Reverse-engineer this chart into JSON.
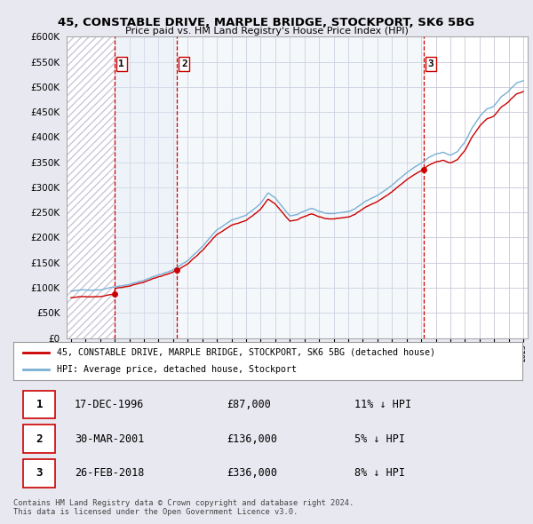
{
  "title1": "45, CONSTABLE DRIVE, MARPLE BRIDGE, STOCKPORT, SK6 5BG",
  "title2": "Price paid vs. HM Land Registry's House Price Index (HPI)",
  "ylim": [
    0,
    600000
  ],
  "yticks": [
    0,
    50000,
    100000,
    150000,
    200000,
    250000,
    300000,
    350000,
    400000,
    450000,
    500000,
    550000,
    600000
  ],
  "transactions": [
    {
      "date_num": 1996.96,
      "price": 87000,
      "label": "1"
    },
    {
      "date_num": 2001.25,
      "price": 136000,
      "label": "2"
    },
    {
      "date_num": 2018.15,
      "price": 336000,
      "label": "3"
    }
  ],
  "vline_dates": [
    1996.96,
    2001.25,
    2018.15
  ],
  "legend_entries": [
    "45, CONSTABLE DRIVE, MARPLE BRIDGE, STOCKPORT, SK6 5BG (detached house)",
    "HPI: Average price, detached house, Stockport"
  ],
  "table_data": [
    [
      "1",
      "17-DEC-1996",
      "£87,000",
      "11% ↓ HPI"
    ],
    [
      "2",
      "30-MAR-2001",
      "£136,000",
      "5% ↓ HPI"
    ],
    [
      "3",
      "26-FEB-2018",
      "£336,000",
      "8% ↓ HPI"
    ]
  ],
  "footer": "Contains HM Land Registry data © Crown copyright and database right 2024.\nThis data is licensed under the Open Government Licence v3.0.",
  "line_color_red": "#cc0000",
  "line_color_blue": "#7ab0d4",
  "vline_color": "#cc0000",
  "bg_color": "#e8e8f0",
  "plot_bg": "#ffffff",
  "grid_color": "#c8c8d8",
  "hatch_color": "#c8c8d8",
  "shading_color": "#dce8f5",
  "label_box_color": "#cc0000"
}
